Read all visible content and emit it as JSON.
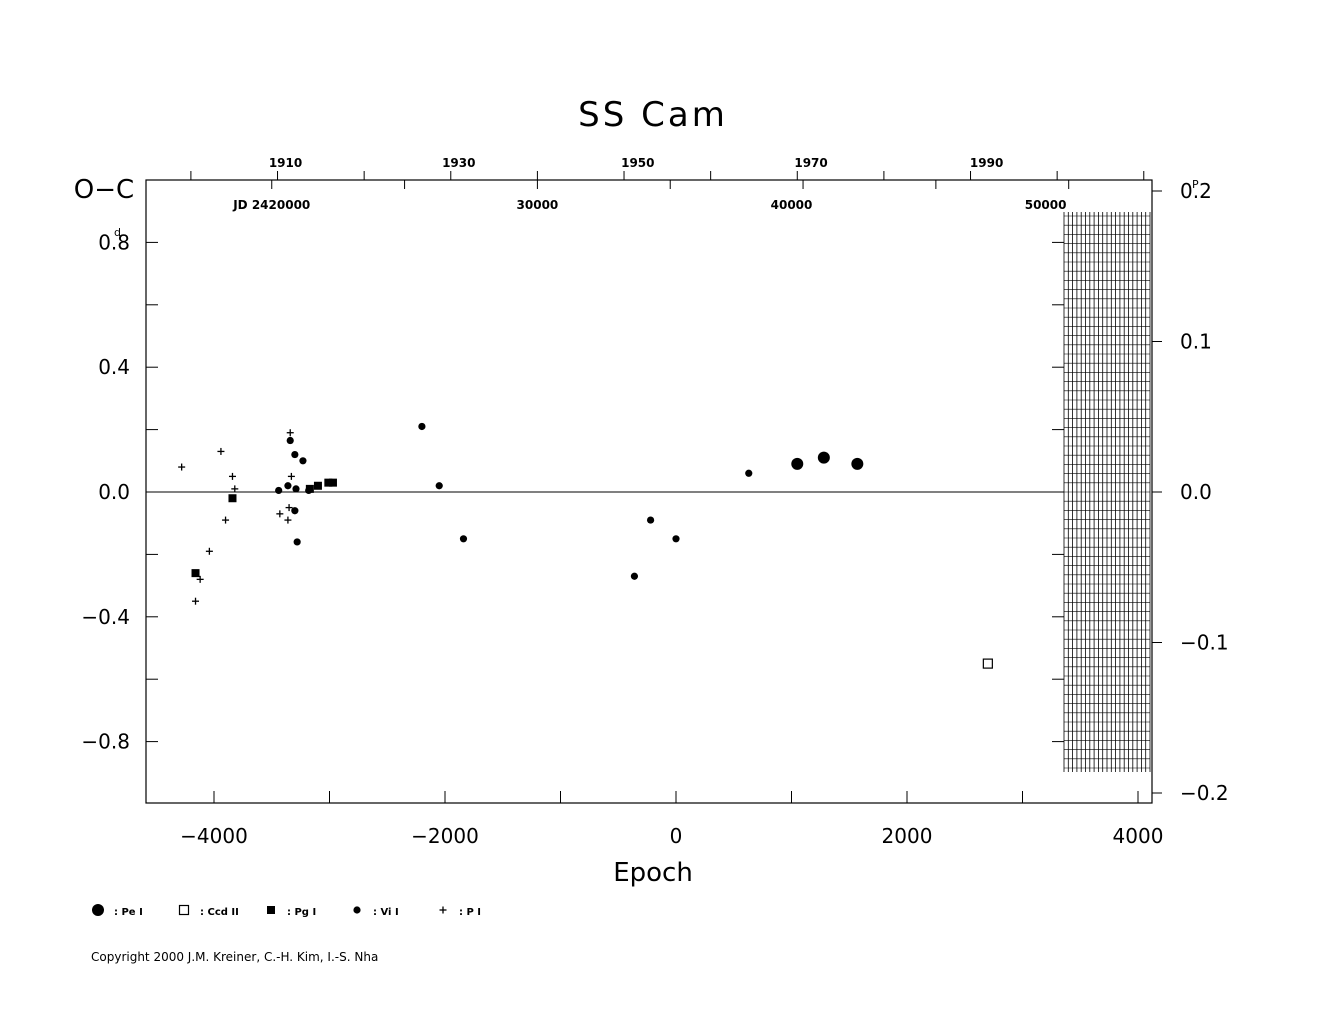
{
  "chart_data": {
    "type": "scatter",
    "title": "SS Cam",
    "xlabel": "Epoch",
    "ylabel": "O−C",
    "ylabel_unit": "d",
    "right_axis_unit": "P",
    "xlim": [
      -4500,
      4200
    ],
    "ylim": [
      -1.0,
      1.0
    ],
    "right_ylim": [
      -0.2,
      0.2
    ],
    "x_ticks": [
      -4000,
      -2000,
      0,
      2000,
      4000
    ],
    "x_tick_labels": [
      "−4000",
      "−2000",
      "0",
      "2000",
      "4000"
    ],
    "y_ticks": [
      0.8,
      0.4,
      0.0,
      -0.4,
      -0.8
    ],
    "y_tick_labels": [
      "0.8",
      "0.4",
      "0.0",
      "−0.4",
      "−0.8"
    ],
    "right_ticks": [
      0.2,
      0.1,
      0.0,
      -0.1,
      -0.2
    ],
    "right_tick_labels": [
      "0.2",
      "0.1",
      "0.0",
      "−0.1",
      "−0.2"
    ],
    "top_year_ticks": [
      {
        "epoch": -3450,
        "label": "1910"
      },
      {
        "epoch": -1950,
        "label": "1930"
      },
      {
        "epoch": -400,
        "label": "1950"
      },
      {
        "epoch": 1100,
        "label": "1970"
      },
      {
        "epoch": 2620,
        "label": "1990"
      }
    ],
    "top_jd_ticks": [
      {
        "epoch": -3500,
        "label": "JD 2420000"
      },
      {
        "epoch": -1200,
        "label": "30000"
      },
      {
        "epoch": 1000,
        "label": "40000"
      },
      {
        "epoch": 3200,
        "label": "50000"
      }
    ],
    "series": [
      {
        "name": ": Pe I",
        "marker": "large-circle",
        "points": [
          [
            1050,
            0.09
          ],
          [
            1280,
            0.11
          ],
          [
            1570,
            0.09
          ]
        ]
      },
      {
        "name": ": Ccd II",
        "marker": "open-square",
        "points": [
          [
            2700,
            -0.55
          ]
        ]
      },
      {
        "name": ": Pg I",
        "marker": "square",
        "points": [
          [
            -4160,
            -0.26
          ],
          [
            -3840,
            -0.02
          ],
          [
            -3170,
            0.01
          ],
          [
            -3100,
            0.02
          ],
          [
            -3010,
            0.03
          ],
          [
            -2970,
            0.03
          ]
        ]
      },
      {
        "name": ": Vi I",
        "marker": "circle",
        "points": [
          [
            -3440,
            0.005
          ],
          [
            -3360,
            0.02
          ],
          [
            -3340,
            0.165
          ],
          [
            -3300,
            0.12
          ],
          [
            -3290,
            0.01
          ],
          [
            -3280,
            -0.16
          ],
          [
            -3230,
            0.1
          ],
          [
            -3180,
            0.005
          ],
          [
            -3300,
            -0.06
          ],
          [
            -2200,
            0.21
          ],
          [
            -2050,
            0.02
          ],
          [
            -1840,
            -0.15
          ],
          [
            -360,
            -0.27
          ],
          [
            -220,
            -0.09
          ],
          [
            0,
            -0.15
          ],
          [
            630,
            0.06
          ]
        ]
      },
      {
        "name": ": P I",
        "marker": "plus",
        "points": [
          [
            -4280,
            0.08
          ],
          [
            -3940,
            0.13
          ],
          [
            -4160,
            -0.35
          ],
          [
            -4120,
            -0.28
          ],
          [
            -4040,
            -0.19
          ],
          [
            -3900,
            -0.09
          ],
          [
            -3840,
            0.05
          ],
          [
            -3820,
            0.01
          ],
          [
            -3340,
            0.19
          ],
          [
            -3330,
            0.05
          ],
          [
            -3350,
            -0.05
          ],
          [
            -3360,
            -0.09
          ],
          [
            -3430,
            -0.07
          ]
        ]
      }
    ],
    "grid": false,
    "legend_position": "bottom-left"
  },
  "copyright": "Copyright 2000 J.M. Kreiner, C.-H. Kim, I.-S. Nha"
}
